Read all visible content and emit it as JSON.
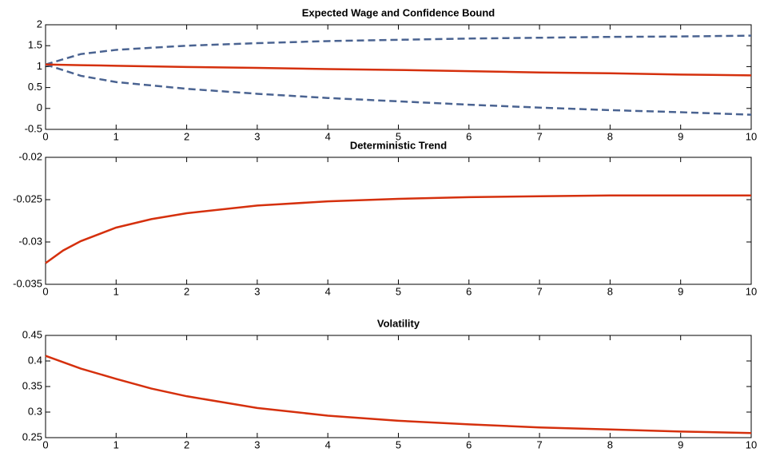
{
  "chart_data": [
    {
      "type": "line",
      "title": "Expected Wage and Confidence Bound",
      "x": [
        0,
        0.5,
        1,
        2,
        3,
        4,
        5,
        6,
        7,
        8,
        9,
        10
      ],
      "series": [
        {
          "color": "#4a6391",
          "dash": true,
          "values": [
            1.05,
            1.3,
            1.4,
            1.5,
            1.56,
            1.61,
            1.64,
            1.67,
            1.69,
            1.71,
            1.72,
            1.74
          ]
        },
        {
          "color": "#4a6391",
          "dash": true,
          "values": [
            1.05,
            0.78,
            0.63,
            0.47,
            0.35,
            0.25,
            0.17,
            0.09,
            0.02,
            -0.04,
            -0.09,
            -0.15
          ]
        },
        {
          "color": "#d5300d",
          "dash": false,
          "values": [
            1.05,
            1.035,
            1.02,
            0.99,
            0.97,
            0.94,
            0.92,
            0.89,
            0.86,
            0.84,
            0.81,
            0.79
          ]
        }
      ],
      "xlim": [
        0,
        10
      ],
      "xticks": [
        0,
        1,
        2,
        3,
        4,
        5,
        6,
        7,
        8,
        9,
        10
      ],
      "ylim": [
        -0.5,
        2
      ],
      "yticks": [
        -0.5,
        0,
        0.5,
        1,
        1.5,
        2
      ]
    },
    {
      "type": "line",
      "title": "Deterministic Trend",
      "x": [
        0,
        0.25,
        0.5,
        1,
        1.5,
        2,
        3,
        4,
        5,
        6,
        7,
        8,
        9,
        10
      ],
      "series": [
        {
          "color": "#d5300d",
          "dash": false,
          "values": [
            -0.0325,
            -0.031,
            -0.0299,
            -0.0283,
            -0.0273,
            -0.0266,
            -0.0257,
            -0.0252,
            -0.0249,
            -0.0247,
            -0.0246,
            -0.0245,
            -0.0245,
            -0.0245
          ]
        }
      ],
      "xlim": [
        0,
        10
      ],
      "xticks": [
        0,
        1,
        2,
        3,
        4,
        5,
        6,
        7,
        8,
        9,
        10
      ],
      "ylim": [
        -0.035,
        -0.02
      ],
      "yticks": [
        -0.035,
        -0.03,
        -0.025,
        -0.02
      ]
    },
    {
      "type": "line",
      "title": "Volatility",
      "x": [
        0,
        0.5,
        1,
        1.5,
        2,
        3,
        4,
        5,
        6,
        7,
        8,
        9,
        10
      ],
      "series": [
        {
          "color": "#d5300d",
          "dash": false,
          "values": [
            0.41,
            0.385,
            0.365,
            0.346,
            0.331,
            0.308,
            0.293,
            0.283,
            0.276,
            0.27,
            0.266,
            0.262,
            0.259
          ]
        }
      ],
      "xlim": [
        0,
        10
      ],
      "xticks": [
        0,
        1,
        2,
        3,
        4,
        5,
        6,
        7,
        8,
        9,
        10
      ],
      "ylim": [
        0.25,
        0.45
      ],
      "yticks": [
        0.25,
        0.3,
        0.35,
        0.4,
        0.45
      ]
    }
  ]
}
